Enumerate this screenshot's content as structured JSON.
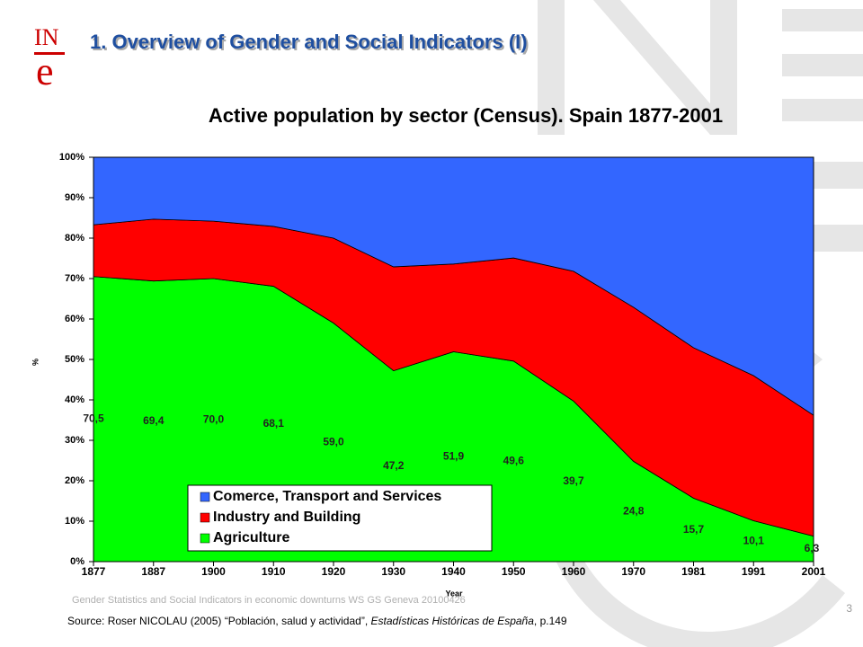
{
  "logo": {
    "top": "IN",
    "bottom": "e"
  },
  "slide_title": "1. Overview of Gender and Social Indicators (I)",
  "footer": "Gender Statistics and Social Indicators in economic downturns WS GS Geneva 20100426",
  "page_number": "3",
  "source": {
    "before": "Source: Roser NICOLAU (2005) “Población, salud y actividad”, ",
    "italic": "Estadísticas Históricas de España",
    "after": ", p.149"
  },
  "chart_data": {
    "type": "stacked_area",
    "title": "Active population by sector (Census). Spain 1877-2001",
    "x_label": "Year",
    "y_label": "%",
    "categories": [
      "1877",
      "1887",
      "1900",
      "1910",
      "1920",
      "1930",
      "1940",
      "1950",
      "1960",
      "1970",
      "1981",
      "1991",
      "2001"
    ],
    "series": [
      {
        "name": "Agriculture",
        "color": "#00ff00",
        "values": [
          70.5,
          69.4,
          70.0,
          68.1,
          59.0,
          47.2,
          51.9,
          49.6,
          39.7,
          24.8,
          15.7,
          10.1,
          6.3
        ],
        "value_labels": [
          "70,5",
          "69,4",
          "70,0",
          "68,1",
          "59,0",
          "47,2",
          "51,9",
          "49,6",
          "39,7",
          "24,8",
          "15,7",
          "10,1",
          "6,3"
        ]
      },
      {
        "name": "Industry and Building",
        "color": "#ff0000",
        "values": [
          12.8,
          15.3,
          14.2,
          14.8,
          21.0,
          25.7,
          21.7,
          25.5,
          32.1,
          38.1,
          37.2,
          35.9,
          29.9
        ]
      },
      {
        "name": "Comerce, Transport and Services",
        "color": "#3366ff",
        "values": [
          16.7,
          15.3,
          15.8,
          17.1,
          20.0,
          27.1,
          26.4,
          24.9,
          28.2,
          37.1,
          47.1,
          54.0,
          63.8
        ]
      }
    ],
    "ylim": [
      0,
      100
    ],
    "yticks": [
      {
        "value": 0,
        "label": "0%"
      },
      {
        "value": 10,
        "label": "10%"
      },
      {
        "value": 20,
        "label": "20%"
      },
      {
        "value": 30,
        "label": "30%"
      },
      {
        "value": 40,
        "label": "40%"
      },
      {
        "value": 50,
        "label": "50%"
      },
      {
        "value": 60,
        "label": "60%"
      },
      {
        "value": 70,
        "label": "70%"
      },
      {
        "value": 80,
        "label": "80%"
      },
      {
        "value": 90,
        "label": "90%"
      },
      {
        "value": 100,
        "label": "100%"
      }
    ],
    "legend": "lower-left"
  }
}
